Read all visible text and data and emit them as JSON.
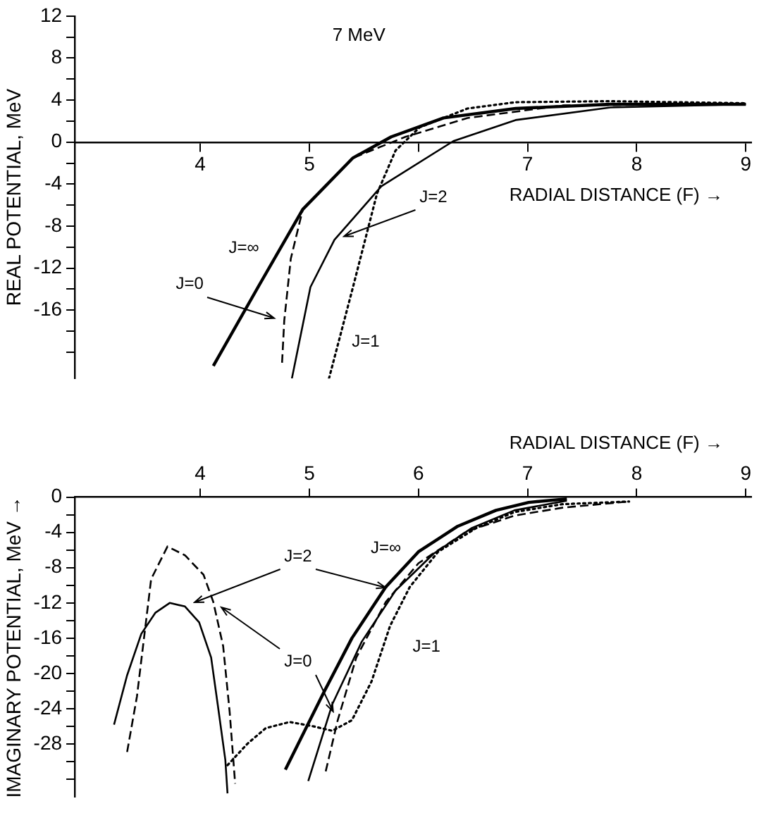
{
  "chart_data": [
    {
      "type": "line",
      "annotations": [
        "7 MeV"
      ],
      "xlabel": "RADIAL DISTANCE (F) →",
      "ylabel": "REAL POTENTIAL, MeV",
      "xlim": [
        2.85,
        9.05
      ],
      "xticks": [
        4,
        5,
        {
          "value": 6,
          "label": null
        },
        7,
        8,
        9
      ],
      "ylim": [
        -22.5,
        12
      ],
      "yticks": [
        12,
        {
          "value": 10,
          "label": null
        },
        8,
        {
          "value": 6,
          "label": null
        },
        4,
        {
          "value": 2,
          "label": null
        },
        0,
        {
          "value": -2,
          "label": null
        },
        -4,
        {
          "value": -6,
          "label": null
        },
        -8,
        {
          "value": -10,
          "label": null
        },
        -12,
        {
          "value": -14,
          "label": null
        },
        -16,
        {
          "value": -18,
          "label": null
        },
        {
          "value": -20,
          "label": null
        }
      ],
      "grid": false,
      "legend": false,
      "marker": "none",
      "series": [
        {
          "name": "J=∞",
          "color": "#000000",
          "line_style": "solid",
          "x": [
            4.12,
            4.53,
            4.94,
            5.4,
            5.75,
            6.23,
            6.89,
            7.76,
            9.0
          ],
          "values": [
            -21.3,
            -13.8,
            -6.4,
            -1.5,
            0.5,
            2.3,
            3.2,
            3.6,
            3.6
          ]
        },
        {
          "name": "J=0",
          "color": "#000000",
          "line_style": "dashed",
          "x": [
            4.75,
            4.77,
            4.83,
            4.94,
            5.4,
            5.88,
            6.45,
            7.33,
            9.0
          ],
          "values": [
            -21.0,
            -17.0,
            -11.1,
            -6.4,
            -1.5,
            0.5,
            2.3,
            3.5,
            3.6
          ]
        },
        {
          "name": "J=2",
          "color": "#000000",
          "line_style": "solid",
          "x": [
            4.84,
            5.01,
            5.23,
            5.66,
            6.32,
            6.89,
            7.76,
            9.0
          ],
          "values": [
            -22.5,
            -13.8,
            -9.3,
            -4.2,
            0.1,
            2.1,
            3.3,
            3.6
          ]
        },
        {
          "name": "J=1",
          "color": "#000000",
          "line_style": "dotted",
          "x": [
            5.18,
            5.4,
            5.62,
            5.79,
            6.01,
            6.45,
            6.89,
            7.76,
            9.0
          ],
          "values": [
            -22.5,
            -13.8,
            -4.9,
            -0.8,
            1.4,
            3.2,
            3.8,
            3.9,
            3.7
          ]
        }
      ]
    },
    {
      "type": "line",
      "xlabel": "RADIAL DISTANCE (F) →",
      "ylabel": "IMAGINARY POTENTIAL, MeV →",
      "xlim": [
        2.85,
        9.05
      ],
      "xticks": [
        4,
        5,
        6,
        7,
        8,
        9
      ],
      "ylim": [
        -34,
        0
      ],
      "yticks": [
        0,
        {
          "value": -2,
          "label": null
        },
        -4,
        {
          "value": -6,
          "label": null
        },
        -8,
        {
          "value": -10,
          "label": null
        },
        -12,
        {
          "value": -14,
          "label": null
        },
        -16,
        {
          "value": -18,
          "label": null
        },
        -20,
        {
          "value": -22,
          "label": null
        },
        -24,
        {
          "value": -26,
          "label": null
        },
        -28,
        {
          "value": -30,
          "label": null
        },
        {
          "value": -32,
          "label": null
        }
      ],
      "grid": false,
      "legend": false,
      "marker": "none",
      "series": [
        {
          "name": "J=∞",
          "color": "#000000",
          "line_style": "solid",
          "x": [
            4.78,
            5.13,
            5.39,
            5.7,
            6.0,
            6.36,
            6.71,
            7.01,
            7.36
          ],
          "values": [
            -30.9,
            -22.2,
            -16.0,
            -10.2,
            -6.2,
            -3.3,
            -1.5,
            -0.6,
            -0.2
          ]
        },
        {
          "name": "J=2",
          "color": "#000000",
          "line_style": "solid",
          "x": [
            3.21,
            3.33,
            3.46,
            3.59,
            3.72,
            3.86,
            3.99,
            4.1,
            4.16,
            4.23,
            4.25,
            null,
            4.99,
            5.21,
            5.48,
            5.79,
            6.14,
            6.49,
            6.88,
            7.36
          ],
          "values": [
            -25.8,
            -20.2,
            -15.5,
            -13.1,
            -12.0,
            -12.4,
            -14.2,
            -18.2,
            -23.5,
            -29.8,
            -33.6,
            null,
            -32.2,
            -23.5,
            -16.4,
            -10.6,
            -6.4,
            -3.5,
            -1.5,
            -0.4
          ]
        },
        {
          "name": "J=0",
          "color": "#000000",
          "line_style": "dashed",
          "x": [
            3.33,
            3.42,
            3.55,
            3.7,
            3.86,
            4.03,
            4.12,
            4.21,
            4.27,
            4.32,
            null,
            5.15,
            5.26,
            5.43,
            5.7,
            6.0,
            6.44,
            6.88,
            7.32,
            7.93
          ],
          "values": [
            -28.9,
            -22.6,
            -9.3,
            -5.6,
            -6.6,
            -8.8,
            -11.9,
            -16.9,
            -24.4,
            -32.5,
            null,
            -31.1,
            -25.3,
            -18.2,
            -11.9,
            -7.5,
            -3.9,
            -2.1,
            -1.2,
            -0.5
          ]
        },
        {
          "name": "J=1",
          "color": "#000000",
          "line_style": "dotted",
          "x": [
            4.25,
            4.43,
            4.6,
            4.82,
            5.04,
            5.21,
            5.39,
            5.57,
            5.74,
            5.92,
            6.18,
            6.53,
            6.88,
            7.32,
            7.93
          ],
          "values": [
            -30.4,
            -28.0,
            -26.2,
            -25.5,
            -26.0,
            -26.5,
            -25.3,
            -20.9,
            -14.6,
            -10.2,
            -6.2,
            -3.5,
            -1.7,
            -0.8,
            -0.5
          ]
        }
      ]
    }
  ]
}
